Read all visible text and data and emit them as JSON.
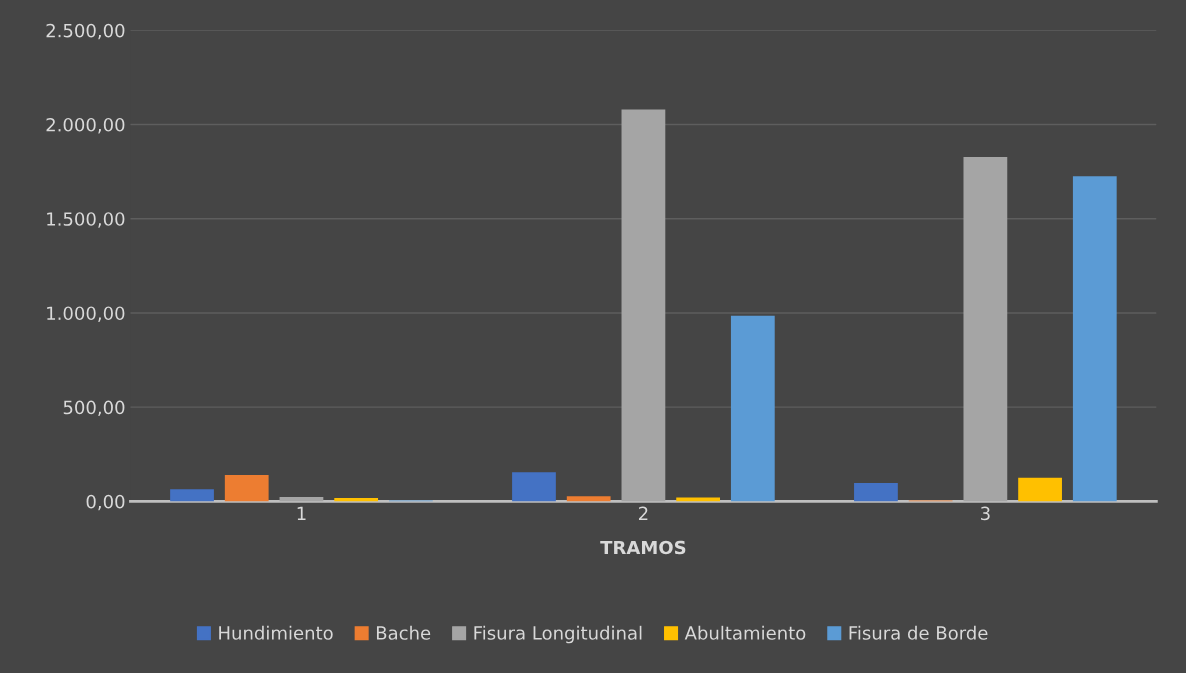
{
  "chart_data": {
    "type": "bar",
    "xlabel": "TRAMOS",
    "categories": [
      "1",
      "2",
      "3"
    ],
    "series": [
      {
        "name": "Hundimiento",
        "color": "#4472c4",
        "values": [
          65,
          155,
          97
        ]
      },
      {
        "name": "Bache",
        "color": "#ed7d31",
        "values": [
          140,
          27,
          5
        ]
      },
      {
        "name": "Fisura Longitudinal",
        "color": "#a5a5a5",
        "values": [
          23,
          2080,
          1828
        ]
      },
      {
        "name": "Abultamiento",
        "color": "#ffc000",
        "values": [
          18,
          20,
          125
        ]
      },
      {
        "name": "Fisura de Borde",
        "color": "#5b9bd5",
        "values": [
          5,
          985,
          1726
        ]
      }
    ],
    "ylim": [
      0,
      2500
    ],
    "yticks": [
      {
        "value": 0,
        "label": "0,00"
      },
      {
        "value": 500,
        "label": "500,00"
      },
      {
        "value": 1000,
        "label": "1.000,00"
      },
      {
        "value": 1500,
        "label": "1.500,00"
      },
      {
        "value": 2000,
        "label": "2.000,00"
      },
      {
        "value": 2500,
        "label": "2.500,00"
      }
    ],
    "grid": "y",
    "legend": "bottom"
  }
}
